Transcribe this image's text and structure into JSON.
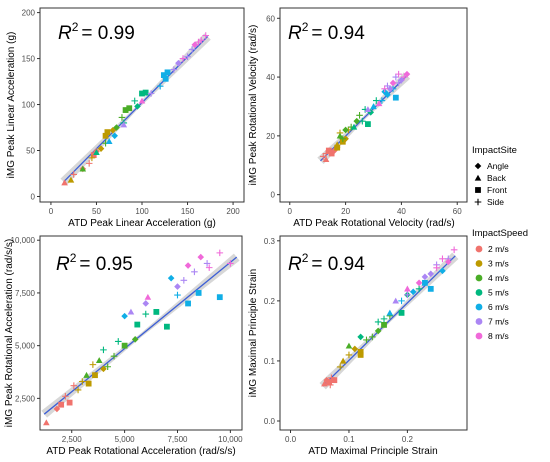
{
  "chart_data": [
    {
      "type": "scatter",
      "panel": "linear_acceleration",
      "xlabel": "ATD Peak Linear Acceleration (g)",
      "ylabel": "iMG Peak Linear Acceleration (g)",
      "annotation": "= 0.99",
      "annotation_symbol": "R",
      "annotation_sup": "2",
      "xlim": [
        -12,
        212
      ],
      "ylim": [
        -6,
        205
      ],
      "xticks": [
        0,
        50,
        100,
        150,
        200
      ],
      "yticks": [
        0,
        50,
        100,
        150,
        200
      ],
      "xtick_labels": [
        "0",
        "50",
        "100",
        "150",
        "200"
      ],
      "ytick_labels": [
        "0",
        "50",
        "100",
        "150",
        "200"
      ],
      "fit": {
        "x": [
          14,
          172
        ],
        "y": [
          16,
          174
        ]
      },
      "points": [
        [
          15,
          15,
          "Back",
          "2 m/s"
        ],
        [
          35,
          30,
          "Angle",
          "2 m/s"
        ],
        [
          42,
          36,
          "Side",
          "2 m/s"
        ],
        [
          47,
          45,
          "Front",
          "2 m/s"
        ],
        [
          50,
          49,
          "Angle",
          "2 m/s"
        ],
        [
          25,
          24,
          "Side",
          "2 m/s"
        ],
        [
          22,
          18,
          "Back",
          "3 m/s"
        ],
        [
          45,
          42,
          "Side",
          "3 m/s"
        ],
        [
          55,
          52,
          "Angle",
          "3 m/s"
        ],
        [
          60,
          66,
          "Front",
          "3 m/s"
        ],
        [
          62,
          70,
          "Front",
          "3 m/s"
        ],
        [
          68,
          72,
          "Angle",
          "3 m/s"
        ],
        [
          35,
          30,
          "Back",
          "4 m/s"
        ],
        [
          60,
          58,
          "Side",
          "4 m/s"
        ],
        [
          72,
          75,
          "Angle",
          "4 m/s"
        ],
        [
          82,
          94,
          "Front",
          "4 m/s"
        ],
        [
          86,
          96,
          "Front",
          "4 m/s"
        ],
        [
          78,
          86,
          "Side",
          "4 m/s"
        ],
        [
          50,
          48,
          "Back",
          "5 m/s"
        ],
        [
          80,
          80,
          "Side",
          "5 m/s"
        ],
        [
          95,
          98,
          "Angle",
          "5 m/s"
        ],
        [
          100,
          112,
          "Front",
          "5 m/s"
        ],
        [
          104,
          113,
          "Front",
          "5 m/s"
        ],
        [
          92,
          104,
          "Side",
          "5 m/s"
        ],
        [
          64,
          60,
          "Back",
          "6 m/s"
        ],
        [
          70,
          66,
          "Angle",
          "6 m/s"
        ],
        [
          120,
          120,
          "Side",
          "6 m/s"
        ],
        [
          124,
          132,
          "Front",
          "6 m/s"
        ],
        [
          128,
          135,
          "Front",
          "6 m/s"
        ],
        [
          126,
          128,
          "Front",
          "6 m/s"
        ],
        [
          80,
          78,
          "Back",
          "7 m/s"
        ],
        [
          110,
          112,
          "Side",
          "7 m/s"
        ],
        [
          140,
          145,
          "Angle",
          "7 m/s"
        ],
        [
          150,
          152,
          "Side",
          "7 m/s"
        ],
        [
          155,
          160,
          "Side",
          "7 m/s"
        ],
        [
          135,
          138,
          "Side",
          "7 m/s"
        ],
        [
          100,
          104,
          "Back",
          "8 m/s"
        ],
        [
          145,
          150,
          "Side",
          "8 m/s"
        ],
        [
          158,
          165,
          "Angle",
          "8 m/s"
        ],
        [
          165,
          170,
          "Side",
          "8 m/s"
        ],
        [
          170,
          175,
          "Side",
          "8 m/s"
        ],
        [
          162,
          168,
          "Side",
          "8 m/s"
        ]
      ]
    },
    {
      "type": "scatter",
      "panel": "rotational_velocity",
      "xlabel": "ATD Peak Rotational Velocity (rad/s)",
      "ylabel": "iMG Peak Rotational Velocity (rad/s)",
      "annotation": "= 0.94",
      "annotation_symbol": "R",
      "annotation_sup": "2",
      "xlim": [
        -3.5,
        63.5
      ],
      "ylim": [
        -2.5,
        63.5
      ],
      "xticks": [
        0,
        20,
        40,
        60
      ],
      "yticks": [
        0,
        20,
        40,
        60
      ],
      "xtick_labels": [
        "0",
        "20",
        "40",
        "60"
      ],
      "ytick_labels": [
        "0",
        "20",
        "40",
        "60"
      ],
      "fit": {
        "x": [
          11,
          42
        ],
        "y": [
          11.5,
          40.5
        ]
      },
      "points": [
        [
          12,
          13,
          "Side",
          "2 m/s"
        ],
        [
          13,
          12,
          "Back",
          "2 m/s"
        ],
        [
          14,
          15,
          "Front",
          "2 m/s"
        ],
        [
          15,
          14,
          "Front",
          "2 m/s"
        ],
        [
          16,
          15,
          "Angle",
          "2 m/s"
        ],
        [
          13,
          14,
          "Side",
          "2 m/s"
        ],
        [
          17,
          17,
          "Back",
          "3 m/s"
        ],
        [
          18,
          21,
          "Side",
          "3 m/s"
        ],
        [
          19,
          18,
          "Front",
          "3 m/s"
        ],
        [
          20,
          19,
          "Angle",
          "3 m/s"
        ],
        [
          21,
          22,
          "Side",
          "3 m/s"
        ],
        [
          17,
          16,
          "Front",
          "3 m/s"
        ],
        [
          18,
          20,
          "Back",
          "4 m/s"
        ],
        [
          20,
          22,
          "Angle",
          "4 m/s"
        ],
        [
          22,
          23,
          "Side",
          "4 m/s"
        ],
        [
          25,
          27,
          "Side",
          "4 m/s"
        ],
        [
          24,
          25,
          "Angle",
          "4 m/s"
        ],
        [
          19,
          19,
          "Side",
          "4 m/s"
        ],
        [
          23,
          23,
          "Back",
          "5 m/s"
        ],
        [
          26,
          25,
          "Side",
          "5 m/s"
        ],
        [
          28,
          24,
          "Front",
          "5 m/s"
        ],
        [
          29,
          28,
          "Angle",
          "5 m/s"
        ],
        [
          31,
          32,
          "Side",
          "5 m/s"
        ],
        [
          27,
          29,
          "Side",
          "5 m/s"
        ],
        [
          30,
          30,
          "Back",
          "6 m/s"
        ],
        [
          33,
          32,
          "Side",
          "6 m/s"
        ],
        [
          35,
          34,
          "Angle",
          "6 m/s"
        ],
        [
          37,
          36,
          "Side",
          "6 m/s"
        ],
        [
          38,
          33,
          "Front",
          "6 m/s"
        ],
        [
          34,
          35,
          "Angle",
          "6 m/s"
        ],
        [
          28,
          29,
          "Back",
          "7 m/s"
        ],
        [
          36,
          36,
          "Angle",
          "7 m/s"
        ],
        [
          39,
          38,
          "Side",
          "7 m/s"
        ],
        [
          40,
          39,
          "Angle",
          "7 m/s"
        ],
        [
          35,
          37,
          "Side",
          "7 m/s"
        ],
        [
          38,
          40,
          "Side",
          "7 m/s"
        ],
        [
          32,
          31,
          "Back",
          "8 m/s"
        ],
        [
          34,
          36,
          "Side",
          "8 m/s"
        ],
        [
          37,
          38,
          "Angle",
          "8 m/s"
        ],
        [
          41,
          40,
          "Side",
          "8 m/s"
        ],
        [
          42,
          41,
          "Angle",
          "8 m/s"
        ],
        [
          39,
          41,
          "Side",
          "8 m/s"
        ]
      ]
    },
    {
      "type": "scatter",
      "panel": "rotational_acceleration",
      "xlabel": "ATD Peak Rotational Acceleration (rad/s/s)",
      "ylabel": "iMG Peak Rotational Acceleration (rad/s/s)",
      "annotation": "= 0.95",
      "annotation_symbol": "R",
      "annotation_sup": "2",
      "xlim": [
        1000,
        10550
      ],
      "ylim": [
        1000,
        10200
      ],
      "xticks": [
        2500,
        5000,
        7500,
        10000
      ],
      "yticks": [
        2500,
        5000,
        7500,
        10000
      ],
      "xtick_labels": [
        "2,500",
        "5,000",
        "7,500",
        "10,000"
      ],
      "ytick_labels": [
        "2,500",
        "5,000",
        "7,500",
        "10,000"
      ],
      "fit": {
        "x": [
          1200,
          10300
        ],
        "y": [
          1750,
          9200
        ]
      },
      "points": [
        [
          1300,
          1350,
          "Back",
          "2 m/s"
        ],
        [
          1800,
          2000,
          "Angle",
          "2 m/s"
        ],
        [
          2200,
          2600,
          "Side",
          "2 m/s"
        ],
        [
          2400,
          2300,
          "Front",
          "2 m/s"
        ],
        [
          2600,
          3100,
          "Side",
          "2 m/s"
        ],
        [
          2000,
          2200,
          "Front",
          "2 m/s"
        ],
        [
          3000,
          3300,
          "Side",
          "3 m/s"
        ],
        [
          3300,
          3200,
          "Front",
          "3 m/s"
        ],
        [
          3600,
          3600,
          "Front",
          "3 m/s"
        ],
        [
          3500,
          4100,
          "Side",
          "3 m/s"
        ],
        [
          4000,
          3900,
          "Angle",
          "3 m/s"
        ],
        [
          2800,
          2900,
          "Side",
          "3 m/s"
        ],
        [
          3200,
          3600,
          "Back",
          "4 m/s"
        ],
        [
          3800,
          4300,
          "Back",
          "4 m/s"
        ],
        [
          4500,
          4500,
          "Side",
          "4 m/s"
        ],
        [
          5000,
          5000,
          "Front",
          "4 m/s"
        ],
        [
          5500,
          5300,
          "Angle",
          "4 m/s"
        ],
        [
          4200,
          4000,
          "Side",
          "4 m/s"
        ],
        [
          4000,
          4800,
          "Side",
          "5 m/s"
        ],
        [
          5600,
          6000,
          "Front",
          "5 m/s"
        ],
        [
          6000,
          6500,
          "Side",
          "5 m/s"
        ],
        [
          6500,
          6600,
          "Front",
          "5 m/s"
        ],
        [
          7000,
          5900,
          "Front",
          "5 m/s"
        ],
        [
          4700,
          5200,
          "Side",
          "5 m/s"
        ],
        [
          5000,
          6400,
          "Angle",
          "6 m/s"
        ],
        [
          7500,
          7400,
          "Side",
          "6 m/s"
        ],
        [
          8000,
          7000,
          "Front",
          "6 m/s"
        ],
        [
          8500,
          7500,
          "Front",
          "6 m/s"
        ],
        [
          9500,
          7300,
          "Front",
          "6 m/s"
        ],
        [
          7200,
          8200,
          "Angle",
          "6 m/s"
        ],
        [
          5300,
          6600,
          "Back",
          "7 m/s"
        ],
        [
          7500,
          7800,
          "Angle",
          "7 m/s"
        ],
        [
          8300,
          8500,
          "Side",
          "7 m/s"
        ],
        [
          8900,
          8900,
          "Side",
          "7 m/s"
        ],
        [
          6000,
          7000,
          "Angle",
          "7 m/s"
        ],
        [
          7800,
          8100,
          "Side",
          "7 m/s"
        ],
        [
          6100,
          7300,
          "Back",
          "8 m/s"
        ],
        [
          8000,
          8800,
          "Angle",
          "8 m/s"
        ],
        [
          9000,
          8700,
          "Side",
          "8 m/s"
        ],
        [
          9500,
          9400,
          "Side",
          "8 m/s"
        ],
        [
          10000,
          8900,
          "Side",
          "8 m/s"
        ],
        [
          8600,
          9200,
          "Angle",
          "8 m/s"
        ]
      ]
    },
    {
      "type": "scatter",
      "panel": "maximal_principal_strain",
      "xlabel": "ATD Maximal Principle Strain",
      "ylabel": "iMG Maximal Principle Strain",
      "annotation": "= 0.94",
      "annotation_symbol": "R",
      "annotation_sup": "2",
      "xlim": [
        -0.018,
        0.302
      ],
      "ylim": [
        -0.015,
        0.308
      ],
      "xticks": [
        0.0,
        0.1,
        0.2
      ],
      "yticks": [
        0.0,
        0.1,
        0.2,
        0.3
      ],
      "xtick_labels": [
        "0.0",
        "0.1",
        "0.2"
      ],
      "ytick_labels": [
        "0.0",
        "0.1",
        "0.2",
        "0.3"
      ],
      "fit": {
        "x": [
          0.055,
          0.282
        ],
        "y": [
          0.058,
          0.275
        ]
      },
      "points": [
        [
          0.058,
          0.062,
          "Back",
          "2 m/s"
        ],
        [
          0.066,
          0.065,
          "Front",
          "2 m/s"
        ],
        [
          0.07,
          0.072,
          "Side",
          "2 m/s"
        ],
        [
          0.075,
          0.068,
          "Front",
          "2 m/s"
        ],
        [
          0.062,
          0.068,
          "Angle",
          "2 m/s"
        ],
        [
          0.068,
          0.06,
          "Side",
          "2 m/s"
        ],
        [
          0.09,
          0.1,
          "Back",
          "3 m/s"
        ],
        [
          0.1,
          0.11,
          "Side",
          "3 m/s"
        ],
        [
          0.12,
          0.115,
          "Front",
          "3 m/s"
        ],
        [
          0.12,
          0.11,
          "Front",
          "3 m/s"
        ],
        [
          0.11,
          0.12,
          "Angle",
          "3 m/s"
        ],
        [
          0.085,
          0.09,
          "Side",
          "3 m/s"
        ],
        [
          0.1,
          0.125,
          "Back",
          "4 m/s"
        ],
        [
          0.13,
          0.135,
          "Side",
          "4 m/s"
        ],
        [
          0.15,
          0.15,
          "Angle",
          "4 m/s"
        ],
        [
          0.16,
          0.16,
          "Front",
          "4 m/s"
        ],
        [
          0.17,
          0.175,
          "Side",
          "4 m/s"
        ],
        [
          0.14,
          0.14,
          "Side",
          "4 m/s"
        ],
        [
          0.12,
          0.14,
          "Angle",
          "5 m/s"
        ],
        [
          0.16,
          0.17,
          "Side",
          "5 m/s"
        ],
        [
          0.19,
          0.18,
          "Front",
          "5 m/s"
        ],
        [
          0.2,
          0.21,
          "Angle",
          "5 m/s"
        ],
        [
          0.22,
          0.22,
          "Side",
          "5 m/s"
        ],
        [
          0.15,
          0.165,
          "Side",
          "5 m/s"
        ],
        [
          0.17,
          0.18,
          "Back",
          "6 m/s"
        ],
        [
          0.21,
          0.215,
          "Angle",
          "6 m/s"
        ],
        [
          0.23,
          0.23,
          "Front",
          "6 m/s"
        ],
        [
          0.24,
          0.22,
          "Front",
          "6 m/s"
        ],
        [
          0.26,
          0.25,
          "Angle",
          "6 m/s"
        ],
        [
          0.19,
          0.2,
          "Side",
          "6 m/s"
        ],
        [
          0.18,
          0.2,
          "Back",
          "7 m/s"
        ],
        [
          0.23,
          0.24,
          "Angle",
          "7 m/s"
        ],
        [
          0.25,
          0.26,
          "Side",
          "7 m/s"
        ],
        [
          0.27,
          0.27,
          "Side",
          "7 m/s"
        ],
        [
          0.2,
          0.21,
          "Side",
          "7 m/s"
        ],
        [
          0.24,
          0.245,
          "Angle",
          "7 m/s"
        ],
        [
          0.2,
          0.22,
          "Back",
          "8 m/s"
        ],
        [
          0.25,
          0.255,
          "Side",
          "8 m/s"
        ],
        [
          0.27,
          0.265,
          "Angle",
          "8 m/s"
        ],
        [
          0.28,
          0.285,
          "Side",
          "8 m/s"
        ],
        [
          0.26,
          0.27,
          "Side",
          "8 m/s"
        ],
        [
          0.22,
          0.23,
          "Angle",
          "8 m/s"
        ]
      ]
    }
  ],
  "legend": {
    "shape_title": "ImpactSite",
    "shapes": [
      {
        "label": "Angle",
        "icon": "diamond"
      },
      {
        "label": "Back",
        "icon": "triangle"
      },
      {
        "label": "Front",
        "icon": "square"
      },
      {
        "label": "Side",
        "icon": "plus"
      }
    ],
    "color_title": "ImpactSpeed",
    "colors": [
      {
        "label": "2 m/s",
        "color": "#f0736d"
      },
      {
        "label": "3 m/s",
        "color": "#bd9a00"
      },
      {
        "label": "4 m/s",
        "color": "#4aad27"
      },
      {
        "label": "5 m/s",
        "color": "#00b87f"
      },
      {
        "label": "6 m/s",
        "color": "#10aee6"
      },
      {
        "label": "7 m/s",
        "color": "#ab86f4"
      },
      {
        "label": "8 m/s",
        "color": "#f069d9"
      }
    ]
  },
  "style": {
    "fit_line": "#3d5fd6",
    "fit_band": "#c9c9c9"
  }
}
